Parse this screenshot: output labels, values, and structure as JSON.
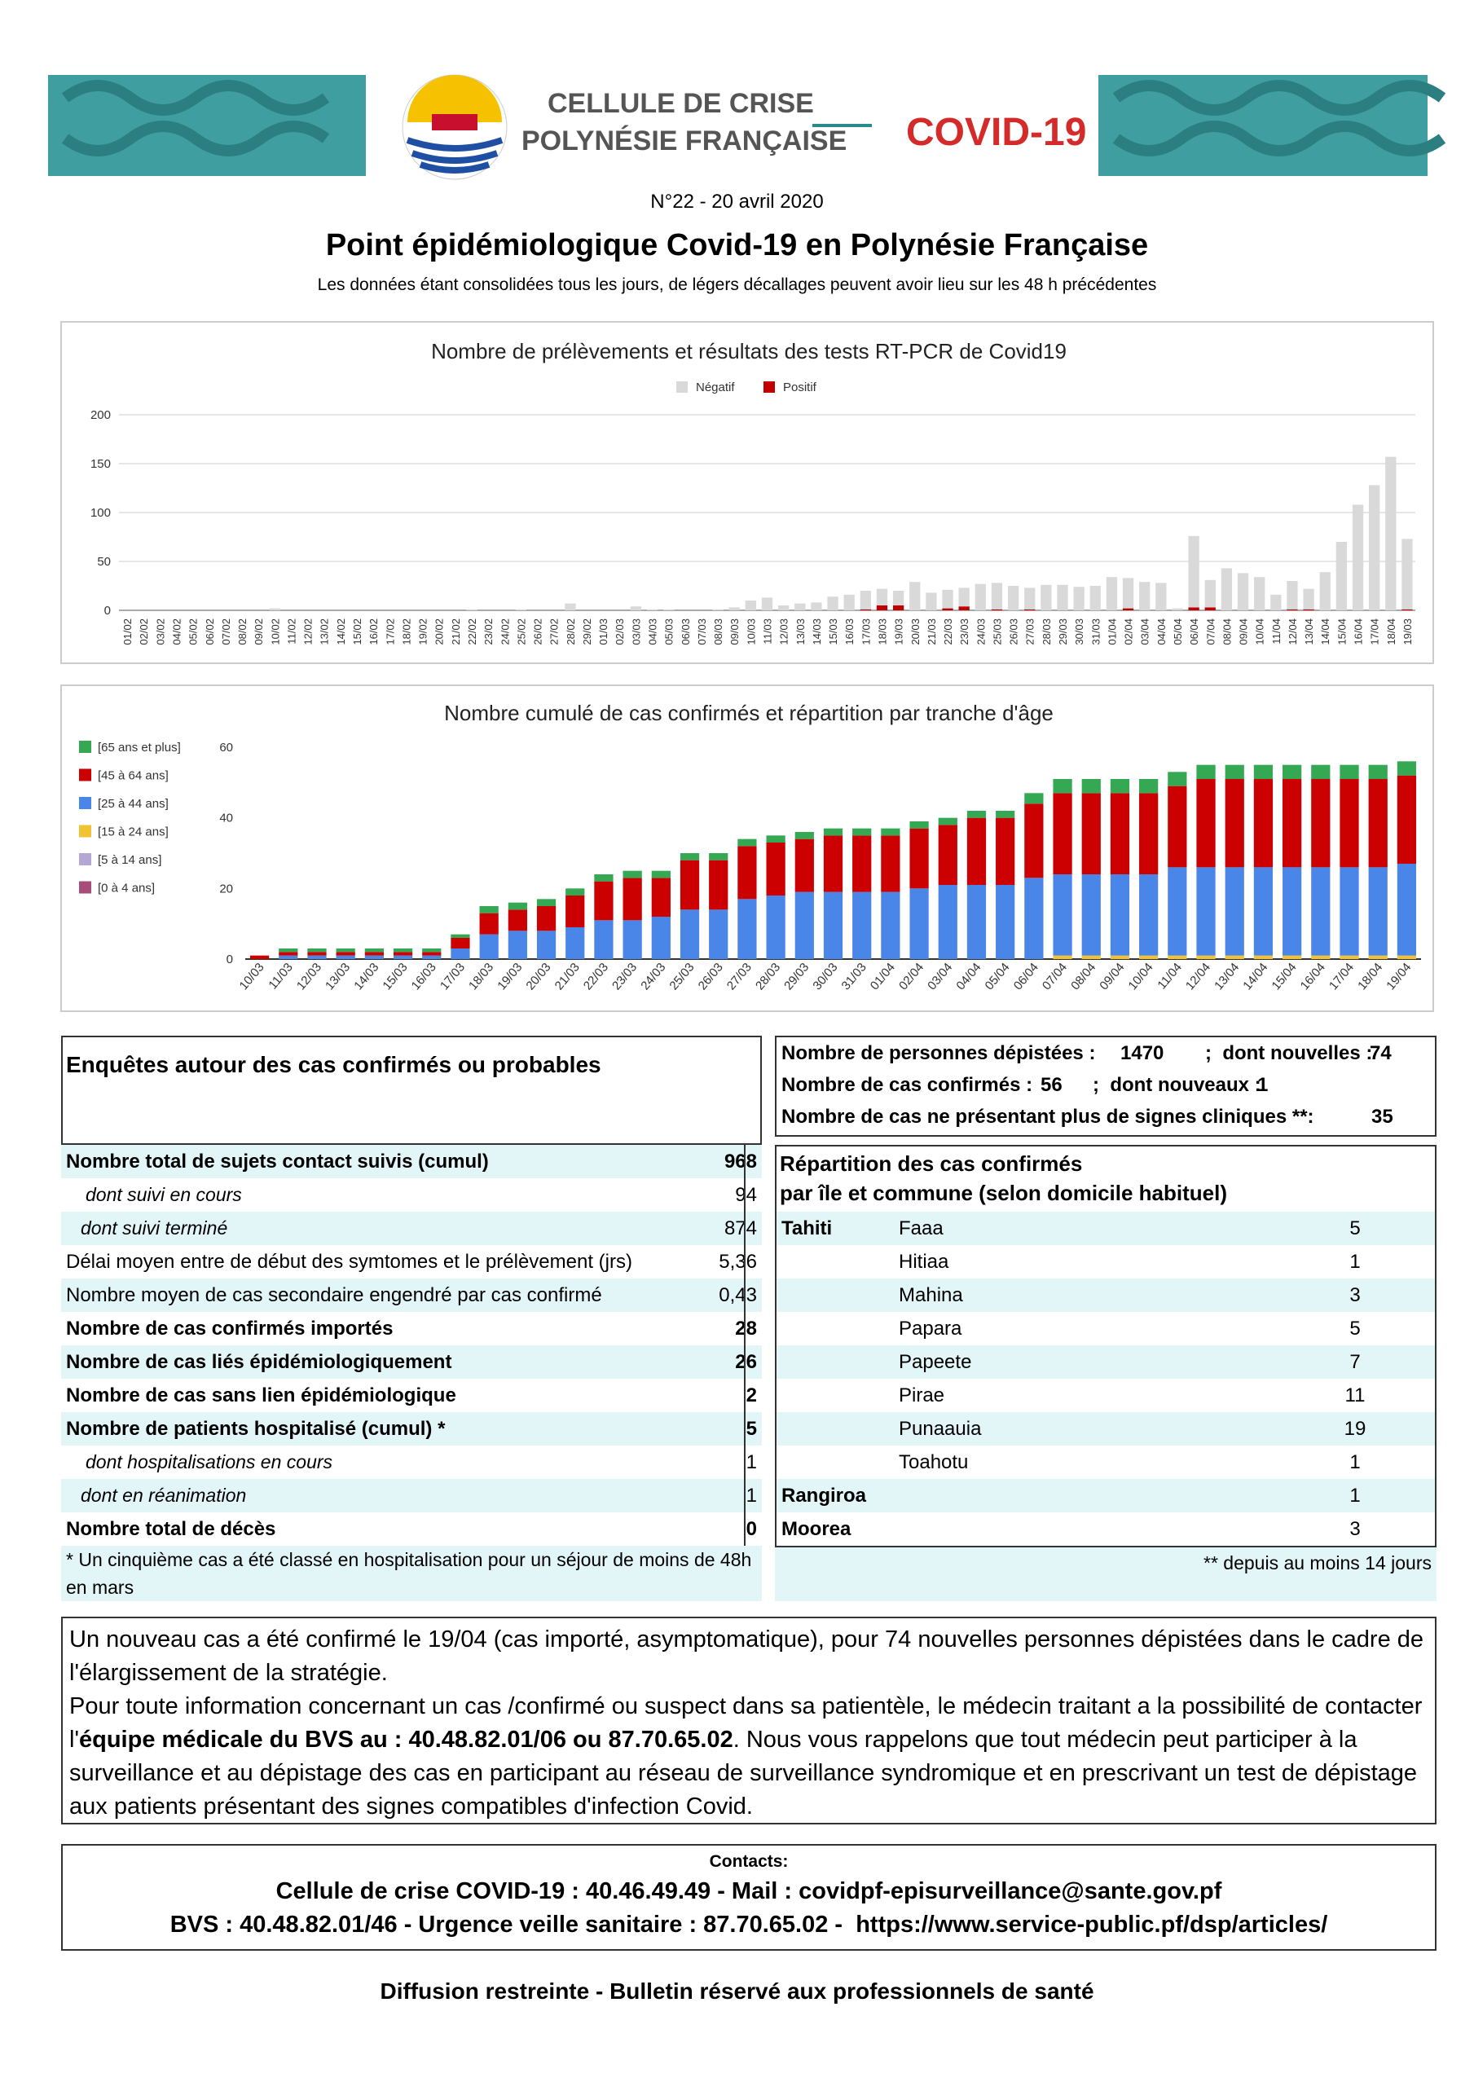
{
  "header": {
    "org_line1": "CELLULE DE CRISE",
    "org_line2": "POLYNÉSIE FRANÇAISE",
    "covid": "COVID-19",
    "issue": "N°22 - 20 avril 2020",
    "title": "Point épidémiologique Covid-19 en Polynésie Française",
    "subtitle": "Les données étant consolidées tous les jours, de légers décallages peuvent avoir lieu sur les 48 h précédentes"
  },
  "chart_data": [
    {
      "type": "bar",
      "stacked": true,
      "title": "Nombre de prélèvements et résultats des tests RT-PCR de Covid19",
      "legend": "top",
      "grid": true,
      "categories": [
        "01/02",
        "02/02",
        "03/02",
        "04/02",
        "05/02",
        "06/02",
        "07/02",
        "08/02",
        "09/02",
        "10/02",
        "11/02",
        "12/02",
        "13/02",
        "14/02",
        "15/02",
        "16/02",
        "17/02",
        "18/02",
        "19/02",
        "20/02",
        "21/02",
        "22/02",
        "23/02",
        "24/02",
        "25/02",
        "26/02",
        "27/02",
        "28/02",
        "29/02",
        "01/03",
        "02/03",
        "03/03",
        "04/03",
        "05/03",
        "06/03",
        "07/03",
        "08/03",
        "09/03",
        "10/03",
        "11/03",
        "12/03",
        "13/03",
        "14/03",
        "15/03",
        "16/03",
        "17/03",
        "18/03",
        "19/03",
        "20/03",
        "21/03",
        "22/03",
        "23/03",
        "24/03",
        "25/03",
        "26/03",
        "27/03",
        "28/03",
        "29/03",
        "30/03",
        "31/03",
        "01/04",
        "02/04",
        "03/04",
        "04/04",
        "05/04",
        "06/04",
        "07/04",
        "08/04",
        "09/04",
        "10/04",
        "11/04",
        "12/04",
        "13/04",
        "14/04",
        "15/04",
        "16/04",
        "17/04",
        "18/04",
        "19/03"
      ],
      "series": [
        {
          "name": "Négatif",
          "color": "#d9d9d9",
          "values": [
            0,
            0,
            0,
            0,
            0,
            0,
            0,
            0,
            0,
            2,
            0,
            0,
            0,
            0,
            0,
            0,
            0,
            0,
            0,
            0,
            0,
            1,
            0,
            0,
            1,
            0,
            0,
            7,
            0,
            0,
            0,
            4,
            1,
            1,
            0,
            0,
            1,
            3,
            10,
            13,
            5,
            7,
            8,
            14,
            16,
            19,
            17,
            15,
            29,
            18,
            19,
            19,
            27,
            27,
            25,
            22,
            26,
            26,
            24,
            25,
            34,
            31,
            29,
            28,
            2,
            73,
            28,
            43,
            38,
            34,
            16,
            29,
            21,
            39,
            70,
            108,
            128,
            157,
            72
          ]
        },
        {
          "name": "Positif",
          "color": "#c00000",
          "values": [
            0,
            0,
            0,
            0,
            0,
            0,
            0,
            0,
            0,
            0,
            0,
            0,
            0,
            0,
            0,
            0,
            0,
            0,
            0,
            0,
            0,
            0,
            0,
            0,
            0,
            0,
            0,
            0,
            0,
            0,
            0,
            0,
            0,
            0,
            0,
            0,
            0,
            0,
            0,
            0,
            0,
            0,
            0,
            0,
            0,
            1,
            5,
            5,
            0,
            0,
            2,
            4,
            0,
            1,
            0,
            1,
            0,
            0,
            0,
            0,
            0,
            2,
            0,
            0,
            0,
            3,
            3,
            0,
            0,
            0,
            0,
            1,
            1,
            0,
            0,
            0,
            0,
            0,
            1
          ]
        }
      ],
      "ylim": [
        0,
        200
      ],
      "yticks": [
        0,
        50,
        100,
        150,
        200
      ]
    },
    {
      "type": "bar",
      "stacked": true,
      "title": "Nombre cumulé de cas confirmés et répartition par tranche d'âge",
      "legend": "left",
      "grid": false,
      "categories": [
        "10/03",
        "11/03",
        "12/03",
        "13/03",
        "14/03",
        "15/03",
        "16/03",
        "17/03",
        "18/03",
        "19/03",
        "20/03",
        "21/03",
        "22/03",
        "23/03",
        "24/03",
        "25/03",
        "26/03",
        "27/03",
        "28/03",
        "29/03",
        "30/03",
        "31/03",
        "01/04",
        "02/04",
        "03/04",
        "04/04",
        "05/04",
        "06/04",
        "07/04",
        "08/04",
        "09/04",
        "10/04",
        "11/04",
        "12/04",
        "13/04",
        "14/04",
        "15/04",
        "16/04",
        "17/04",
        "18/04",
        "19/04"
      ],
      "series": [
        {
          "name": "[0 à 4 ans]",
          "color": "#a64d79",
          "values": [
            0,
            0,
            0,
            0,
            0,
            0,
            0,
            0,
            0,
            0,
            0,
            0,
            0,
            0,
            0,
            0,
            0,
            0,
            0,
            0,
            0,
            0,
            0,
            0,
            0,
            0,
            0,
            0,
            0,
            0,
            0,
            0,
            0,
            0,
            0,
            0,
            0,
            0,
            0,
            0,
            0
          ]
        },
        {
          "name": "[5 à 14 ans]",
          "color": "#b4a7d6",
          "values": [
            0,
            0,
            0,
            0,
            0,
            0,
            0,
            0,
            0,
            0,
            0,
            0,
            0,
            0,
            0,
            0,
            0,
            0,
            0,
            0,
            0,
            0,
            0,
            0,
            0,
            0,
            0,
            0,
            0,
            0,
            0,
            0,
            0,
            0,
            0,
            0,
            0,
            0,
            0,
            0,
            0
          ]
        },
        {
          "name": "[15 à 24 ans]",
          "color": "#f1c232",
          "values": [
            0,
            0,
            0,
            0,
            0,
            0,
            0,
            0,
            0,
            0,
            0,
            0,
            0,
            0,
            0,
            0,
            0,
            0,
            0,
            0,
            0,
            0,
            0,
            0,
            0,
            0,
            0,
            0,
            1,
            1,
            1,
            1,
            1,
            1,
            1,
            1,
            1,
            1,
            1,
            1,
            1
          ]
        },
        {
          "name": "[25 à 44 ans]",
          "color": "#4a86e8",
          "values": [
            0,
            1,
            1,
            1,
            1,
            1,
            1,
            3,
            7,
            8,
            8,
            9,
            11,
            11,
            12,
            14,
            14,
            17,
            18,
            19,
            19,
            19,
            19,
            20,
            21,
            21,
            21,
            23,
            23,
            23,
            23,
            23,
            25,
            25,
            25,
            25,
            25,
            25,
            25,
            25,
            26
          ]
        },
        {
          "name": "[45 à 64 ans]",
          "color": "#cc0000",
          "values": [
            1,
            1,
            1,
            1,
            1,
            1,
            1,
            3,
            6,
            6,
            7,
            9,
            11,
            12,
            11,
            14,
            14,
            15,
            15,
            15,
            16,
            16,
            16,
            17,
            17,
            19,
            19,
            21,
            23,
            23,
            23,
            23,
            23,
            25,
            25,
            25,
            25,
            25,
            25,
            25,
            25
          ]
        },
        {
          "name": "[65 ans et plus]",
          "color": "#34a853",
          "values": [
            0,
            1,
            1,
            1,
            1,
            1,
            1,
            1,
            2,
            2,
            2,
            2,
            2,
            2,
            2,
            2,
            2,
            2,
            2,
            2,
            2,
            2,
            2,
            2,
            2,
            2,
            2,
            3,
            4,
            4,
            4,
            4,
            4,
            4,
            4,
            4,
            4,
            4,
            4,
            4,
            4
          ]
        }
      ],
      "ylim": [
        0,
        60
      ],
      "yticks": [
        0,
        20,
        40,
        60
      ]
    }
  ],
  "investigations": {
    "title": "Enquêtes autour des cas confirmés ou probables",
    "rows": [
      [
        "Nombre total de sujets contact suivis (cumul)",
        968
      ],
      [
        "dont suivi en cours",
        94
      ],
      [
        "dont suivi terminé",
        874
      ],
      [
        "Délai moyen entre de début des symtomes et le prélèvement (jrs)",
        "5,36"
      ],
      [
        "Nombre moyen de cas secondaire engendré par cas confirmé",
        "0,43"
      ],
      [
        "Nombre de cas confirmés importés",
        28
      ],
      [
        "Nombre de cas liés épidémiologiquement",
        26
      ],
      [
        "Nombre de cas sans lien épidémiologique",
        2
      ],
      [
        "Nombre de patients hospitalisé (cumul) *",
        5
      ],
      [
        "dont hospitalisations en cours",
        1
      ],
      [
        "dont en réanimation",
        1
      ],
      [
        "Nombre total de décès",
        0
      ]
    ],
    "footnote": "* Un cinquième cas a été classé en hospitalisation pour un séjour de moins de 48h en mars"
  },
  "summary": [
    {
      "label": "Nombre de personnes dépistées :",
      "value": 1470,
      "sub_label": ";  dont nouvelles :",
      "sub_value": 74
    },
    {
      "label": "Nombre de cas confirmés :",
      "value": 56,
      "sub_label": ";  dont nouveaux :",
      "sub_value": 1
    },
    {
      "label": "Nombre de cas ne présentant plus de signes cliniques **:",
      "value": 35
    }
  ],
  "distribution": {
    "title_line1": "Répartition des cas confirmés",
    "title_line2": "par île et commune (selon domicile habituel)",
    "rows": [
      {
        "island": "Tahiti",
        "commune": "Faaa",
        "count": 5
      },
      {
        "commune": "Hitiaa",
        "count": 1
      },
      {
        "commune": "Mahina",
        "count": 3
      },
      {
        "commune": "Papara",
        "count": 5
      },
      {
        "commune": "Papeete",
        "count": 7
      },
      {
        "commune": "Pirae",
        "count": 11
      },
      {
        "commune": "Punaauia",
        "count": 19
      },
      {
        "commune": "Toahotu",
        "count": 1
      },
      {
        "island": "Rangiroa",
        "count": 1
      },
      {
        "island": "Moorea",
        "count": 3
      }
    ],
    "footnote": "** depuis au moins 14 jours"
  },
  "message": {
    "p1": "Un nouveau cas a été confirmé le 19/04 (cas importé, asymptomatique), pour 74 nouvelles personnes dépistées dans le cadre de l'élargissement de la stratégie.",
    "p2_start": "Pour toute information concernant un cas /confirmé ou suspect dans sa patientèle, le médecin traitant a la possibilité de contacter l'",
    "p2_bold": "équipe médicale du BVS au : 40.48.82.01/06 ou 87.70.65.02",
    "p2_end": ". Nous vous rappelons que tout médecin peut participer à la surveillance et au dépistage des cas en participant au réseau de surveillance syndromique et en prescrivant un test de dépistage aux patients présentant des signes compatibles d'infection Covid."
  },
  "contacts": {
    "title": "Contacts:",
    "line1": "Cellule de crise COVID-19 : 40.46.49.49 - Mail : covidpf-episurveillance@sante.gov.pf",
    "line2": "BVS : 40.48.82.01/46 - Urgence veille sanitaire : 87.70.65.02 -  https://www.service-public.pf/dsp/articles/"
  },
  "footer": "Diffusion restreinte - Bulletin réservé aux professionnels de santé"
}
